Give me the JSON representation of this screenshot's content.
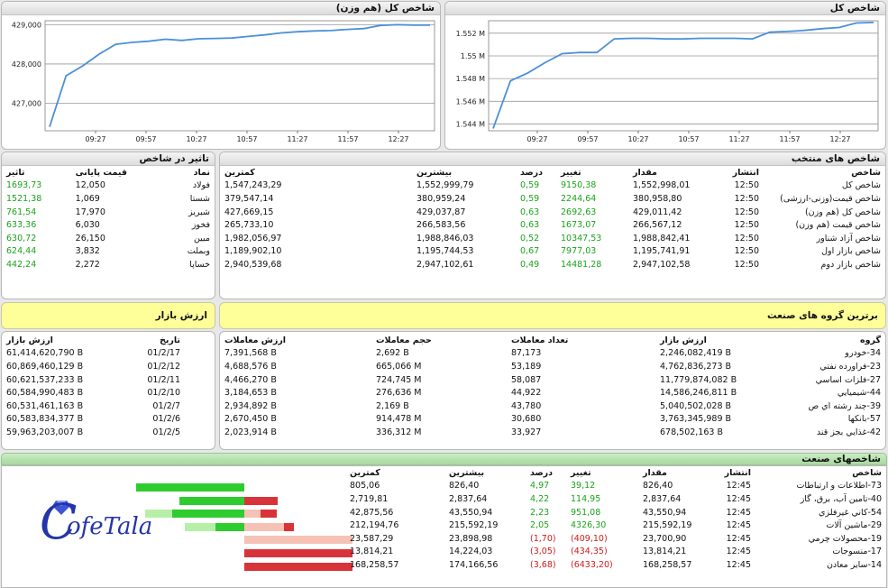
{
  "chart1": {
    "title": "شاخص کل (هم وزن)",
    "chart_data": {
      "type": "line",
      "x_ticks": [
        "09:27",
        "09:57",
        "10:27",
        "10:57",
        "11:27",
        "11:57",
        "12:27"
      ],
      "y_ticks": [
        "427,000",
        "428,000",
        "429,000"
      ],
      "ylim": [
        426300,
        429100
      ],
      "y": [
        426400,
        427700,
        427950,
        428250,
        428500,
        428550,
        428580,
        428630,
        428600,
        428640,
        428650,
        428660,
        428700,
        428740,
        428790,
        428820,
        428840,
        428850,
        428880,
        428900,
        428980,
        429000,
        428990,
        428990
      ]
    }
  },
  "chart2": {
    "title": "شاخص کل",
    "chart_data": {
      "type": "line",
      "x_ticks": [
        "09:27",
        "09:57",
        "10:27",
        "10:57",
        "11:27",
        "11:57",
        "12:27"
      ],
      "y_ticks": [
        "1.544 M",
        "1.546 M",
        "1.548 M",
        "1.55 M",
        "1.552 M"
      ],
      "ylim": [
        1543400,
        1553100
      ],
      "y": [
        1543600,
        1547800,
        1548500,
        1549400,
        1550200,
        1550300,
        1550300,
        1551500,
        1551550,
        1551550,
        1551500,
        1551500,
        1551550,
        1551550,
        1551550,
        1551500,
        1552100,
        1552150,
        1552250,
        1552400,
        1552500,
        1552900,
        1552950
      ]
    }
  },
  "impact": {
    "title": "تاثیر در شاخص",
    "headers": [
      "نماد",
      "قیمت پایانی",
      "تاثیر"
    ],
    "rows": [
      [
        "فولاد",
        "12,050",
        "1693,73"
      ],
      [
        "شستا",
        "1,069",
        "1521,38"
      ],
      [
        "شبریز",
        "17,970",
        "761,54"
      ],
      [
        "فخوز",
        "6,030",
        "633,36"
      ],
      [
        "مبین",
        "26,150",
        "630,72"
      ],
      [
        "وبملت",
        "3,832",
        "624,44"
      ],
      [
        "خساپا",
        "2,272",
        "442,24"
      ]
    ]
  },
  "selected": {
    "title": "شاخص های منتخب",
    "headers": [
      "شاخص",
      "انتشار",
      "مقدار",
      "تغییر",
      "درصد",
      "بیشترین",
      "کمترین"
    ],
    "rows": [
      [
        "شاخص کل",
        "12:50",
        "1,552,998,01",
        "9150,38",
        "0,59",
        "1,552,999,79",
        "1,547,243,29"
      ],
      [
        "شاخص قیمت(وزنی-ارزشی)",
        "12:50",
        "380,958,80",
        "2244,64",
        "0,59",
        "380,959,24",
        "379,547,14"
      ],
      [
        "شاخص کل (هم وزن)",
        "12:50",
        "429,011,42",
        "2692,63",
        "0,63",
        "429,037,87",
        "427,669,15"
      ],
      [
        "شاخص قیمت (هم وزن)",
        "12:50",
        "266,567,12",
        "1673,07",
        "0,63",
        "266,583,56",
        "265,733,10"
      ],
      [
        "شاخص آزاد شناور",
        "12:50",
        "1,988,842,41",
        "10347,53",
        "0,52",
        "1,988,846,03",
        "1,982,056,97"
      ],
      [
        "شاخص بازار اول",
        "12:50",
        "1,195,741,91",
        "7977,03",
        "0,67",
        "1,195,744,53",
        "1,189,902,10"
      ],
      [
        "شاخص بازار دوم",
        "12:50",
        "2,947,102,58",
        "14481,28",
        "0,49",
        "2,947,102,61",
        "2,940,539,68"
      ]
    ]
  },
  "market_value": {
    "title": "ارزش بازار",
    "headers": [
      "تاریخ",
      "ارزش بازار"
    ],
    "rows": [
      [
        "01/2/17",
        "61,414,620,790 B"
      ],
      [
        "01/2/12",
        "60,869,460,129 B"
      ],
      [
        "01/2/11",
        "60,621,537,233 B"
      ],
      [
        "01/2/10",
        "60,584,990,483 B"
      ],
      [
        "01/2/7",
        "60,531,461,163 B"
      ],
      [
        "01/2/6",
        "60,583,834,377 B"
      ],
      [
        "01/2/5",
        "59,963,203,007 B"
      ]
    ]
  },
  "top_groups": {
    "title": "برترین گروه های صنعت",
    "headers": [
      "گروه",
      "ارزش بازار",
      "تعداد معاملات",
      "حجم معاملات",
      "ارزش معاملات"
    ],
    "rows": [
      [
        "34-خودرو",
        "2,246,082,419 B",
        "87,173",
        "2,692 B",
        "7,391,568 B"
      ],
      [
        "23-فراورده نفتي",
        "4,762,836,273 B",
        "53,189",
        "665,066 M",
        "4,688,576 B"
      ],
      [
        "27-فلزات اساسي",
        "11,779,874,082 B",
        "58,087",
        "724,745 M",
        "4,466,270 B"
      ],
      [
        "44-شيميايي",
        "14,586,246,811 B",
        "44,922",
        "276,636 M",
        "3,184,653 B"
      ],
      [
        "39-چند رشته اي ص",
        "5,040,502,028 B",
        "43,780",
        "2,169 B",
        "2,934,892 B"
      ],
      [
        "57-بانكها",
        "3,763,345,989 B",
        "30,680",
        "914,478 M",
        "2,670,450 B"
      ],
      [
        "42-غذايي بجز قند",
        "678,502,163 B",
        "33,927",
        "336,312 M",
        "2,023,914 B"
      ]
    ]
  },
  "industry": {
    "title": "شاخصهای صنعت",
    "headers": [
      "شاخص",
      "انتشار",
      "مقدار",
      "تغییر",
      "درصد",
      "بیشترین",
      "کمترین"
    ],
    "rows": [
      [
        "73-اطلاعات و ارتباطات",
        "12:45",
        "826,40",
        "39,12",
        "4,97",
        "826,40",
        "805,06"
      ],
      [
        "40-تامين آب، برق، گاز",
        "12:45",
        "2,837,64",
        "114,95",
        "4,22",
        "2,837,64",
        "2,719,81"
      ],
      [
        "54-كاني غيرفلزي",
        "12:45",
        "43,550,94",
        "951,08",
        "2,23",
        "43,550,94",
        "42,875,56"
      ],
      [
        "29-ماشين آلات",
        "12:45",
        "215,592,19",
        "4326,30",
        "2,05",
        "215,592,19",
        "212,194,76"
      ],
      [
        "19-محصولات چرمي",
        "12:45",
        "23,700,90",
        "(409,10)",
        "(1,70)",
        "23,898,98",
        "23,587,29"
      ],
      [
        "17-منسوجات",
        "12:45",
        "13,814,21",
        "(434,35)",
        "(3,05)",
        "14,224,03",
        "13,814,21"
      ],
      [
        "14-ساير معادن",
        "12:45",
        "168,258,57",
        "(6433,20)",
        "(3,68)",
        "174,166,56",
        "168,258,57"
      ]
    ],
    "row_colors": [
      "green",
      "green",
      "green",
      "green",
      "red",
      "red",
      "red"
    ],
    "bars": [
      {
        "green": 1.0,
        "light_green": 0,
        "red": 0,
        "light_red": 0
      },
      {
        "green": 0.6,
        "light_green": 0,
        "red": 0.31,
        "light_red": 0
      },
      {
        "green": 0.67,
        "light_green": 0.25,
        "red": 0.15,
        "light_red": 0.15
      },
      {
        "green": 0.27,
        "light_green": 0.28,
        "red": 0.09,
        "light_red": 0.37
      },
      {
        "green": 0,
        "light_green": 0,
        "red": 0,
        "light_red": 1.0
      },
      {
        "green": 0,
        "light_green": 0,
        "red": 1.0,
        "light_red": 0
      },
      {
        "green": 0,
        "light_green": 0,
        "red": 1.0,
        "light_red": 0
      }
    ]
  },
  "logo": {
    "text": "ofeTala",
    "initial": "C"
  },
  "colors": {
    "line": "#4a90d9",
    "green": "#1aa31a",
    "red": "#d21a1a",
    "bar_green": "#2ecc2e",
    "bar_light_green": "#b6f0a8",
    "bar_red": "#d9333a",
    "bar_light_red": "#f6c2b6"
  }
}
